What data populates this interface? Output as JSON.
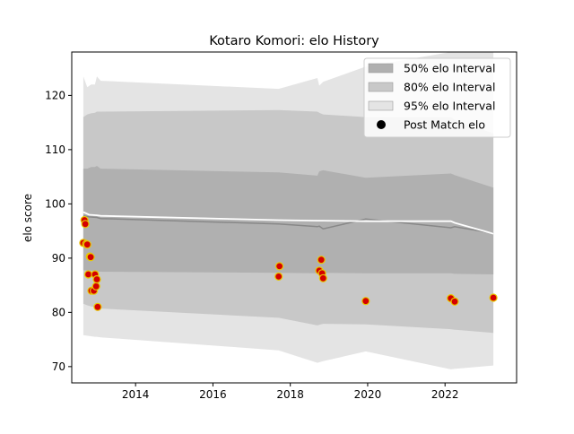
{
  "chart_data": {
    "type": "line",
    "title": "Kotaro Komori: elo History",
    "xlabel": "",
    "ylabel": "elo score",
    "xlim": [
      2012.35,
      2023.85
    ],
    "ylim": [
      67,
      128
    ],
    "xticks": [
      2014,
      2016,
      2018,
      2020,
      2022
    ],
    "yticks": [
      70,
      80,
      90,
      100,
      110,
      120
    ],
    "grid": false,
    "legend_position": "top-right",
    "legend": [
      {
        "label": "50% elo Interval",
        "kind": "patch",
        "color": "#b0b0b0"
      },
      {
        "label": "80% elo Interval",
        "kind": "patch",
        "color": "#c8c8c8"
      },
      {
        "label": "95% elo Interval",
        "kind": "patch",
        "color": "#e4e4e4"
      },
      {
        "label": "Post Match elo",
        "kind": "marker",
        "color": "#000000"
      }
    ],
    "band_x": [
      2012.65,
      2012.75,
      2012.85,
      2012.95,
      2013.0,
      2013.1,
      2017.7,
      2018.7,
      2018.75,
      2018.85,
      2019.95,
      2022.15,
      2022.25,
      2023.25
    ],
    "band_95_upper": [
      123.5,
      121.5,
      122,
      122,
      123.5,
      122.7,
      121.2,
      123.2,
      121.8,
      122.5,
      125.3,
      128,
      128,
      128
    ],
    "band_95_lower": [
      75.8,
      75.7,
      75.6,
      75.5,
      75.5,
      75.4,
      73.0,
      70.7,
      70.8,
      71.0,
      72.8,
      69.5,
      69.6,
      70.2
    ],
    "band_80_upper": [
      116.0,
      116.5,
      116.7,
      116.8,
      117.0,
      117.0,
      117.3,
      117.0,
      116.8,
      116.5,
      116.0,
      116.0,
      115.5,
      113.0
    ],
    "band_80_lower": [
      81.6,
      81.3,
      81.1,
      81.0,
      80.8,
      80.7,
      79.0,
      77.6,
      77.7,
      77.9,
      77.8,
      76.9,
      76.8,
      76.2
    ],
    "band_50_upper": [
      106.5,
      106.5,
      106.8,
      106.8,
      107.0,
      106.5,
      105.8,
      105.2,
      106.0,
      106.2,
      104.8,
      105.6,
      105.3,
      103.0
    ],
    "band_50_lower": [
      87.8,
      87.7,
      87.7,
      87.6,
      87.5,
      87.5,
      87.3,
      87.2,
      87.3,
      87.3,
      87.2,
      87.2,
      87.1,
      87.0
    ],
    "series": [
      {
        "line": "mean",
        "x": [
          2012.65,
          2012.8,
          2013.0,
          2013.1,
          2017.7,
          2018.7,
          2018.75,
          2018.85,
          2019.95,
          2022.15,
          2022.25,
          2023.25
        ],
        "y": [
          97.8,
          97.6,
          97.5,
          97.3,
          96.3,
          95.8,
          95.9,
          95.4,
          97.2,
          95.6,
          95.8,
          94.6
        ],
        "color": "#888888"
      },
      {
        "line": "white",
        "x": [
          2012.65,
          2012.8,
          2013.0,
          2013.1,
          2017.7,
          2018.7,
          2018.75,
          2018.85,
          2019.95,
          2022.15,
          2022.25,
          2023.25
        ],
        "y": [
          98.5,
          98.0,
          97.9,
          97.8,
          97.0,
          96.9,
          96.9,
          96.9,
          96.8,
          96.8,
          96.5,
          94.5
        ],
        "color": "#ffffff"
      },
      {
        "name": "Post Match elo",
        "type": "scatter",
        "x": [
          2012.65,
          2012.68,
          2012.7,
          2012.72,
          2012.75,
          2012.78,
          2012.82,
          2012.84,
          2012.86,
          2012.92,
          2012.95,
          2012.98,
          2013.0,
          2013.02,
          2017.7,
          2017.72,
          2018.75,
          2018.8,
          2018.82,
          2018.85,
          2019.95,
          2022.15,
          2022.25,
          2023.25
        ],
        "y": [
          92.8,
          97.0,
          96.3,
          92.6,
          92.5,
          87.0,
          90.3,
          90.2,
          84.0,
          84.0,
          87.0,
          84.8,
          86.1,
          81.0,
          86.6,
          88.5,
          87.7,
          89.7,
          87.2,
          86.3,
          82.1,
          82.6,
          82.0,
          82.7
        ],
        "color": "#d40000",
        "edge": "#e8c800"
      }
    ]
  }
}
